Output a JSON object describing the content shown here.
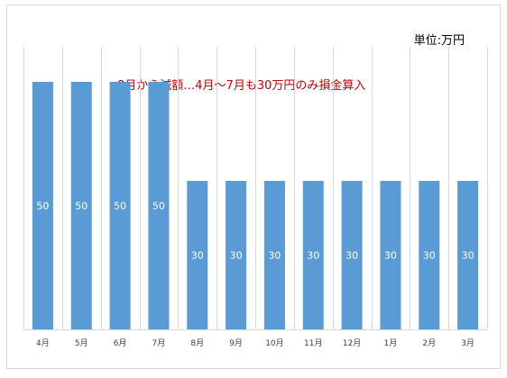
{
  "unit_label": "単位:万円",
  "annotation": "8月から減額…4月～7月も30万円のみ損金算入",
  "colors": {
    "bar": "#5b9bd5",
    "annotation": "#c00000",
    "gridline": "#d9d9d9",
    "data_label": "#ffffff"
  },
  "chart_data": {
    "type": "bar",
    "categories": [
      "4月",
      "5月",
      "6月",
      "7月",
      "8月",
      "9月",
      "10月",
      "11月",
      "12月",
      "1月",
      "2月",
      "3月"
    ],
    "values": [
      50,
      50,
      50,
      50,
      30,
      30,
      30,
      30,
      30,
      30,
      30,
      30
    ],
    "data_labels": [
      "50",
      "50",
      "50",
      "50",
      "30",
      "30",
      "30",
      "30",
      "30",
      "30",
      "30",
      "30"
    ],
    "title": "",
    "xlabel": "",
    "ylabel": "",
    "ylim": [
      0,
      60
    ],
    "grid": "vertical-category-separators",
    "legend": "none"
  }
}
